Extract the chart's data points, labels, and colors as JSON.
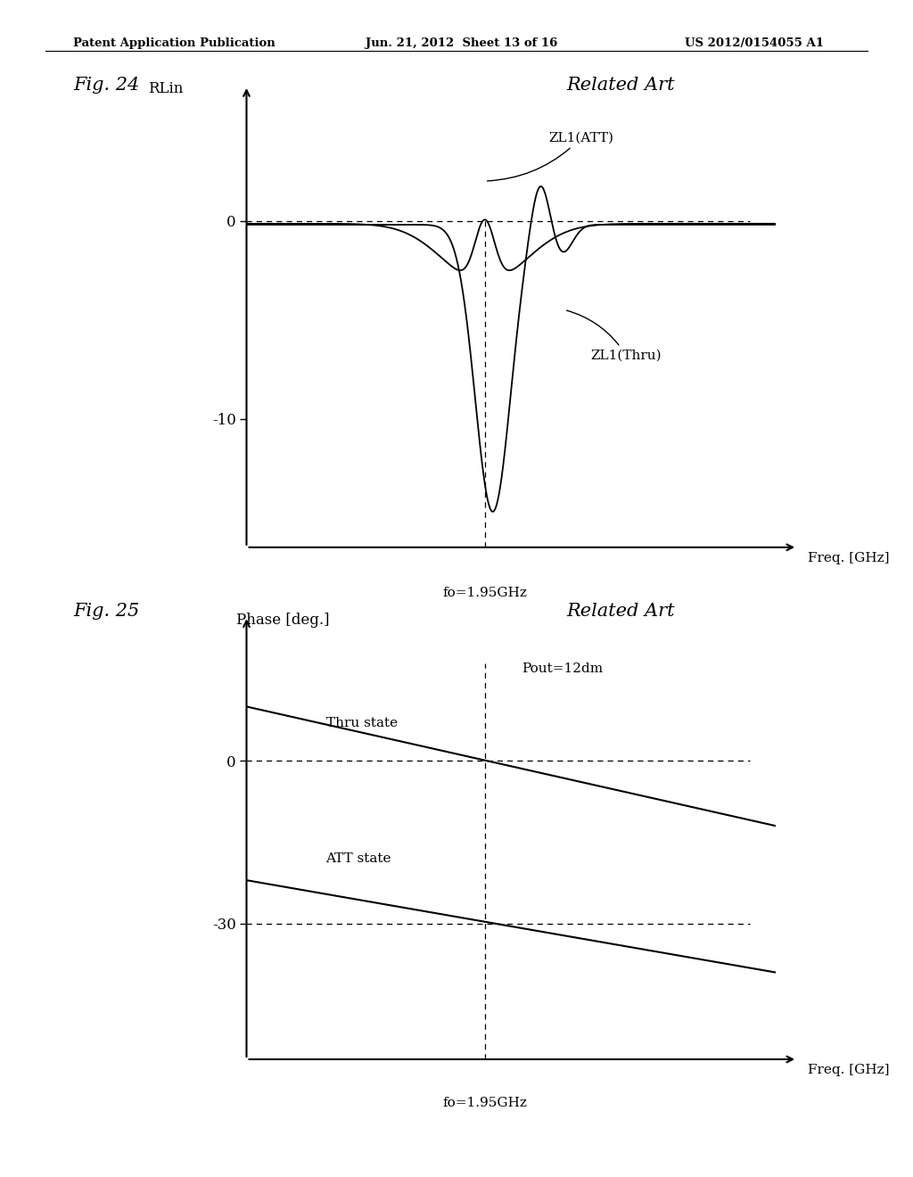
{
  "header_left": "Patent Application Publication",
  "header_mid": "Jun. 21, 2012  Sheet 13 of 16",
  "header_right": "US 2012/0154055 A1",
  "fig24_label": "Fig. 24",
  "fig24_related": "Related Art",
  "fig25_label": "Fig. 25",
  "fig25_related": "Related Art",
  "fig24_ylabel": "RLin",
  "fig24_xlabel": "Freq. [GHz]",
  "fig24_fo_label": "fo=1.95GHz",
  "fig24_ytick_minus10": "-10",
  "fig24_ytick_0": "0",
  "fig24_zl1_att_label": "ZL1(ATT)",
  "fig24_zl1_thru_label": "ZL1(Thru)",
  "fig25_ylabel": "Phase [deg.]",
  "fig25_xlabel": "Freq. [GHz]",
  "fig25_fo_label": "fo=1.95GHz",
  "fig25_ytick_0": "0",
  "fig25_ytick_minus30": "-30",
  "fig25_pout_label": "Pout=12dm",
  "fig25_thru_label": "Thru state",
  "fig25_att_label": "ATT state",
  "bg_color": "#ffffff",
  "line_color": "#000000"
}
